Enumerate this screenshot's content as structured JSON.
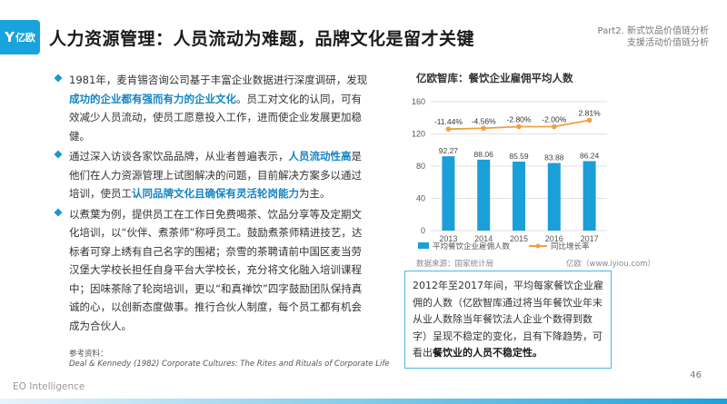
{
  "header": {
    "logo_text": "亿欧",
    "title": "人力资源管理：人员流动为难题，品牌文化是留才关键",
    "part_line1": "Part2. 新式饮品价值链分析",
    "part_line2": "支援活动价值链分析"
  },
  "bullets": [
    {
      "p1": "1981年，麦肯锡咨询公司基于丰富企业数据进行深度调研，发现",
      "h1": "成功的企业都有强而有力的企业文化",
      "p2": "。员工对文化的认同，可有效减少人员流动，使员工愿意投入工作，进而使企业发展更加稳健。"
    },
    {
      "p1": "通过深入访谈各家饮品品牌，从业者普遍表示，",
      "h1": "人员流动性高",
      "p2": "是他们在人力资源管理上试图解决的问题，目前解决方案多以通过培训，使员工",
      "h2": "认同品牌文化且确保有灵活轮岗能力",
      "p3": "为主。"
    },
    {
      "p1": "以煮葉为例，提供员工在工作日免费喝茶、饮品分享等及定期文化培训，以“伙伴、煮茶师”称呼员工。鼓励煮茶师精进技艺，达标者可穿上绣有自己名字的围裙；奈雪的茶聘请前中国区麦当劳汉堡大学校长担任自身平台大学校长，充分将文化融入培训课程中；因味茶除了轮岗培训，更以“和真禅饮”四字鼓励团队保持真诚的心，以创新态度做事。推行合伙人制度，每个员工都有机会成为合伙人。"
    }
  ],
  "reference": {
    "label": "参考资料：",
    "text": "Deal & Kennedy (1982) Corporate Cultures: The Rites and Rituals of Corporate Life"
  },
  "chart_title": "亿欧智库：餐饮企业雇佣平均人数",
  "chart_data": {
    "type": "bar",
    "categories": [
      "2013",
      "2014",
      "2015",
      "2016",
      "2017"
    ],
    "series": [
      {
        "name": "平均餐饮企业雇佣人数",
        "values": [
          92.27,
          88.06,
          85.59,
          83.88,
          86.24
        ],
        "labels": [
          "92.27",
          "88.06",
          "85.59",
          "83.88",
          "86.24"
        ],
        "color": "#1b9fd8"
      },
      {
        "name": "同比增长率",
        "values": [
          -11.44,
          -4.56,
          -2.8,
          -2.0,
          2.81
        ],
        "labels": [
          "-11.44%",
          "-4.56%",
          "-2.80%",
          "-2.00%",
          "2.81%"
        ],
        "color": "#f0a040"
      }
    ],
    "line_points_on_left_axis": [
      126,
      127,
      129,
      129,
      137
    ],
    "ylim": [
      0,
      160
    ],
    "yticks": [
      "0",
      "40",
      "80",
      "120",
      "160"
    ],
    "ytick_values": [
      0,
      40,
      80,
      120,
      160
    ],
    "grid": true,
    "legend_position": "bottom"
  },
  "source": {
    "left": "数据来源：国家统计局",
    "right": "亿欧（www.iyiou.com）"
  },
  "note": {
    "p1": "2012年至2017年间，平均每家餐饮企业雇佣的人数（亿欧智库通过将当年餐饮业年末从业人数除当年餐饮法人企业个数得到数字）呈现不稳定的变化，且有下降趋势，可看出",
    "h1": "餐饮业的人员不稳定性。"
  },
  "footer": {
    "brand": "EO Intelligence",
    "page": "46"
  },
  "colors": {
    "accent": "#19a3dc",
    "highlight": "#1584c4",
    "line": "#f0a040"
  }
}
